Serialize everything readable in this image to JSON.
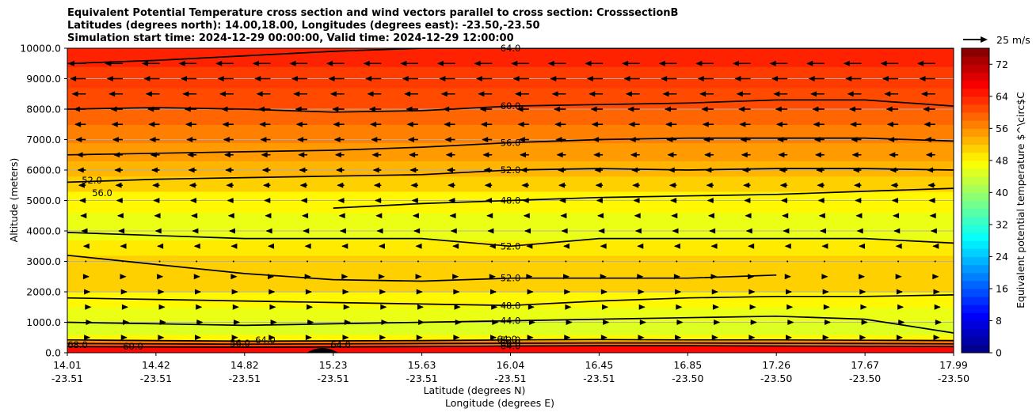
{
  "title": {
    "line1": "Equivalent Potential Temperature cross section and wind vectors parallel to cross section: CrosssectionB",
    "line2": "Latitudes (degrees north): 14.00,18.00, Longitudes (degrees east): -23.50,-23.50",
    "line3": "Simulation start time: 2024-12-29 00:00:00, Valid time: 2024-12-29 12:00:00"
  },
  "quiver_key": {
    "label": "25 m/s"
  },
  "chart_data": {
    "type": "heatmap",
    "subtype": "filled contour cross-section with contour lines and wind vectors",
    "ylabel": "Altitude (meters)",
    "xlabel_lines": [
      "Latitude (degrees N)",
      "Longitude (degrees E)"
    ],
    "ylim": [
      0,
      10000
    ],
    "y_ticks": [
      "0.0",
      "1000.0",
      "2000.0",
      "3000.0",
      "4000.0",
      "5000.0",
      "6000.0",
      "7000.0",
      "8000.0",
      "9000.0",
      "10000.0"
    ],
    "y_tick_values": [
      0,
      1000,
      2000,
      3000,
      4000,
      5000,
      6000,
      7000,
      8000,
      9000,
      10000
    ],
    "x_ticks": [
      {
        "lat": "14.01",
        "lon": "-23.51"
      },
      {
        "lat": "14.42",
        "lon": "-23.51"
      },
      {
        "lat": "14.82",
        "lon": "-23.51"
      },
      {
        "lat": "15.23",
        "lon": "-23.51"
      },
      {
        "lat": "15.63",
        "lon": "-23.51"
      },
      {
        "lat": "16.04",
        "lon": "-23.51"
      },
      {
        "lat": "16.45",
        "lon": "-23.51"
      },
      {
        "lat": "16.85",
        "lon": "-23.50"
      },
      {
        "lat": "17.26",
        "lon": "-23.50"
      },
      {
        "lat": "17.67",
        "lon": "-23.50"
      },
      {
        "lat": "17.99",
        "lon": "-23.50"
      }
    ],
    "grid": "horizontal",
    "colorbar": {
      "label": "Equivalent potential temperature $^\\circ$C",
      "ticks": [
        "0",
        "8",
        "16",
        "24",
        "32",
        "40",
        "48",
        "56",
        "64",
        "72"
      ],
      "range": [
        0,
        76
      ],
      "step": 2,
      "colormap": "jet"
    },
    "layers": [
      {
        "z_top": 250,
        "value": 66
      },
      {
        "z_top": 400,
        "value": 58
      },
      {
        "z_top": 600,
        "value": 48
      },
      {
        "z_top": 1000,
        "value": 45
      },
      {
        "z_top": 1500,
        "value": 46
      },
      {
        "z_top": 2000,
        "value": 48
      },
      {
        "z_top": 2500,
        "value": 51
      },
      {
        "z_top": 3200,
        "value": 51
      },
      {
        "z_top": 3700,
        "value": 49
      },
      {
        "z_top": 4600,
        "value": 46
      },
      {
        "z_top": 5300,
        "value": 48
      },
      {
        "z_top": 5800,
        "value": 51
      },
      {
        "z_top": 6300,
        "value": 53
      },
      {
        "z_top": 6900,
        "value": 55
      },
      {
        "z_top": 7500,
        "value": 57
      },
      {
        "z_top": 8000,
        "value": 59
      },
      {
        "z_top": 8700,
        "value": 61
      },
      {
        "z_top": 9400,
        "value": 62
      },
      {
        "z_top": 10000,
        "value": 64
      }
    ],
    "contours": [
      {
        "level": "64.0",
        "label": "64.0",
        "z": [
          9500,
          9600,
          9750,
          9900,
          10000,
          10000,
          10000,
          10000,
          10000,
          10000,
          10000
        ]
      },
      {
        "level": "60.0",
        "label": "60.0",
        "z": [
          8000,
          8050,
          8000,
          7900,
          7950,
          8100,
          8150,
          8200,
          8300,
          8300,
          8100
        ]
      },
      {
        "level": "56.0",
        "label": "56.0",
        "z": [
          6500,
          6550,
          6600,
          6650,
          6750,
          6900,
          7000,
          7050,
          7050,
          7050,
          6950
        ]
      },
      {
        "level": "52.0",
        "label": "52.0",
        "z": [
          5600,
          5700,
          5750,
          5800,
          5850,
          6000,
          6050,
          6000,
          6050,
          6050,
          6000
        ]
      },
      {
        "level": "48.0",
        "label": "48.0",
        "z": [
          null,
          null,
          null,
          4750,
          4900,
          5000,
          5100,
          5150,
          5200,
          5300,
          5400
        ]
      },
      {
        "level": "52.0",
        "label": "52.0",
        "z": [
          3950,
          3850,
          3750,
          3750,
          3750,
          3500,
          3750,
          3750,
          3750,
          3750,
          3600
        ]
      },
      {
        "level": "52.0",
        "label": "52.0",
        "z": [
          3200,
          2900,
          2600,
          2400,
          2350,
          2450,
          2450,
          2450,
          2550,
          null,
          null
        ]
      },
      {
        "level": "48.0",
        "label": "48.0",
        "z": [
          1800,
          1750,
          1700,
          1650,
          1600,
          1550,
          1700,
          1800,
          1850,
          1850,
          1900
        ]
      },
      {
        "level": "44.0",
        "label": "44.0",
        "z": [
          1000,
          950,
          900,
          950,
          1000,
          1050,
          1100,
          1150,
          1200,
          1100,
          650
        ]
      },
      {
        "level": "52.0",
        "label": "52.0",
        "z": [
          420,
          400,
          380,
          390,
          400,
          420,
          430,
          420,
          420,
          410,
          400
        ]
      },
      {
        "level": "60.0",
        "label": "60.0",
        "z": [
          300,
          290,
          280,
          290,
          300,
          310,
          320,
          320,
          310,
          300,
          290
        ]
      },
      {
        "level": "64.0",
        "label": "64.0",
        "z": [
          200,
          190,
          180,
          190,
          200,
          220,
          230,
          230,
          220,
          210,
          200
        ]
      }
    ],
    "contour_labels_extra": [
      "52.0",
      "56.0",
      "68.0",
      "60.0",
      "56.0",
      "64.0",
      "64.0",
      "64.0"
    ],
    "wind_vectors": [
      {
        "z": 9500,
        "u": -18
      },
      {
        "z": 9000,
        "u": -16
      },
      {
        "z": 8500,
        "u": -14
      },
      {
        "z": 8000,
        "u": -12
      },
      {
        "z": 7500,
        "u": -11
      },
      {
        "z": 7000,
        "u": -10
      },
      {
        "z": 6500,
        "u": -9
      },
      {
        "z": 6000,
        "u": -8
      },
      {
        "z": 5500,
        "u": -7
      },
      {
        "z": 5000,
        "u": -6
      },
      {
        "z": 4500,
        "u": -5
      },
      {
        "z": 4000,
        "u": -4
      },
      {
        "z": 3500,
        "u": -2
      },
      {
        "z": 3000,
        "u": 1
      },
      {
        "z": 2500,
        "u": 3
      },
      {
        "z": 2000,
        "u": 4
      },
      {
        "z": 1500,
        "u": 5
      },
      {
        "z": 1000,
        "u": 6
      },
      {
        "z": 500,
        "u": 4
      }
    ]
  }
}
